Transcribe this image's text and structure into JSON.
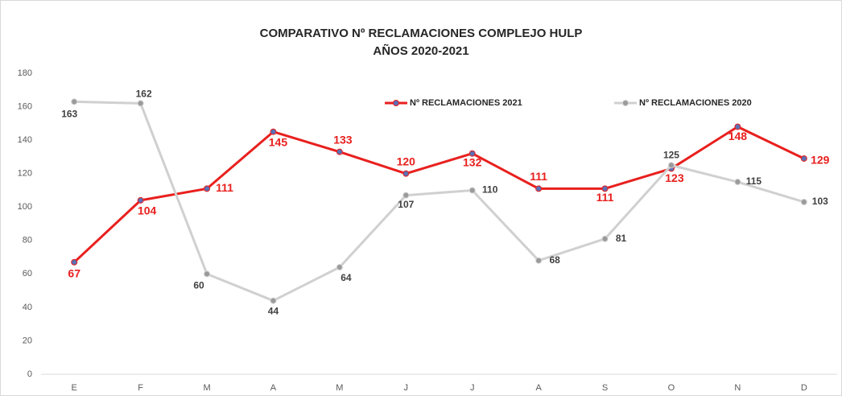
{
  "chart_data": {
    "type": "line",
    "title": "COMPARATIVO Nº RECLAMACIONES COMPLEJO HULP",
    "subtitle": "AÑOS 2020-2021",
    "categories": [
      "E",
      "F",
      "M",
      "A",
      "M",
      "J",
      "J",
      "A",
      "S",
      "O",
      "N",
      "D"
    ],
    "series": [
      {
        "name": "Nº RECLAMACIONES 2021",
        "color": "#e8201e",
        "values": [
          67,
          104,
          111,
          145,
          133,
          120,
          132,
          111,
          111,
          123,
          148,
          129
        ]
      },
      {
        "name": "Nº RECLAMACIONES 2020",
        "color": "#d0d0d0",
        "values": [
          163,
          162,
          60,
          44,
          64,
          107,
          110,
          68,
          81,
          125,
          115,
          103
        ]
      }
    ],
    "ylim": [
      0,
      180
    ],
    "yticks": [
      0,
      20,
      40,
      60,
      80,
      100,
      120,
      140,
      160,
      180
    ],
    "grid": false
  }
}
